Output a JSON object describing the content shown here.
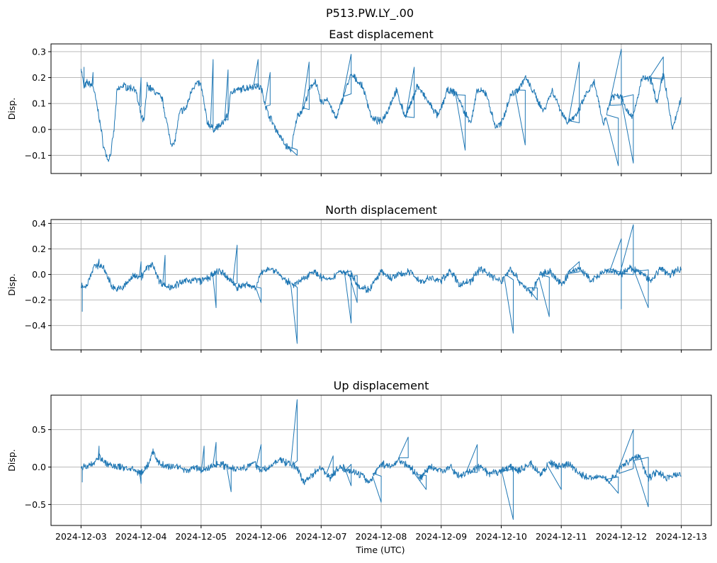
{
  "chart_data": {
    "type": "line",
    "title": "P513.PW.LY_.00",
    "xlabel": "Time (UTC)",
    "x_tick_labels": [
      "2024-12-03",
      "2024-12-04",
      "2024-12-05",
      "2024-12-06",
      "2024-12-07",
      "2024-12-08",
      "2024-12-09",
      "2024-12-10",
      "2024-12-11",
      "2024-12-12",
      "2024-12-13"
    ],
    "xlim": [
      "2024-12-02T12:30",
      "2024-12-13T12:30"
    ],
    "grid": true,
    "color": "#1f77b4",
    "panels": [
      {
        "title": "East displacement",
        "ylabel": "Disp.",
        "ylim": [
          -0.17,
          0.33
        ],
        "y_ticks": [
          -0.1,
          0.0,
          0.1,
          0.2,
          0.3
        ],
        "y_tick_labels": [
          "−0.1",
          "0.0",
          "0.1",
          "0.2",
          "0.3"
        ],
        "series": {
          "x_days_from_2024_12_03": [
            0,
            0.05,
            0.1,
            0.2,
            0.3,
            0.38,
            0.45,
            0.5,
            0.55,
            0.6,
            0.7,
            0.8,
            0.9,
            1.0,
            1.05,
            1.1,
            1.2,
            1.35,
            1.45,
            1.5,
            1.55,
            1.65,
            1.75,
            1.85,
            1.95,
            2.0,
            2.1,
            2.2,
            2.35,
            2.45,
            2.5,
            2.6,
            2.75,
            2.9,
            3.0,
            3.1,
            3.25,
            3.4,
            3.5,
            3.6,
            3.7,
            3.8,
            3.9,
            4.0,
            4.1,
            4.25,
            4.4,
            4.5,
            4.6,
            4.7,
            4.85,
            5.0,
            5.1,
            5.25,
            5.4,
            5.5,
            5.6,
            5.8,
            5.95,
            6.1,
            6.25,
            6.4,
            6.5,
            6.6,
            6.75,
            6.9,
            7.0,
            7.15,
            7.3,
            7.4,
            7.55,
            7.7,
            7.85,
            8.0,
            8.1,
            8.25,
            8.4,
            8.55,
            8.7,
            8.85,
            9.0,
            9.1,
            9.2,
            9.35,
            9.5,
            9.6,
            9.7,
            9.85,
            10.0
          ],
          "values": [
            0.24,
            0.16,
            0.18,
            0.17,
            0.05,
            -0.07,
            -0.12,
            -0.09,
            0.0,
            0.15,
            0.17,
            0.16,
            0.16,
            0.05,
            0.03,
            0.17,
            0.15,
            0.12,
            0.0,
            -0.05,
            -0.06,
            0.07,
            0.08,
            0.16,
            0.18,
            0.17,
            0.03,
            0.0,
            0.02,
            0.06,
            0.15,
            0.15,
            0.16,
            0.17,
            0.16,
            0.07,
            0.0,
            -0.06,
            -0.08,
            0.05,
            0.08,
            0.15,
            0.19,
            0.1,
            0.12,
            0.04,
            0.15,
            0.21,
            0.19,
            0.16,
            0.04,
            0.03,
            0.07,
            0.15,
            0.05,
            0.1,
            0.17,
            0.1,
            0.05,
            0.15,
            0.14,
            0.06,
            0.03,
            0.15,
            0.14,
            0.01,
            0.02,
            0.13,
            0.16,
            0.2,
            0.14,
            0.07,
            0.15,
            0.07,
            0.03,
            0.05,
            0.13,
            0.18,
            0.02,
            0.13,
            0.13,
            0.07,
            0.05,
            0.2,
            0.19,
            0.1,
            0.22,
            0.0,
            0.12
          ]
        },
        "spikes": [
          [
            0.05,
            0.24
          ],
          [
            0.2,
            0.22
          ],
          [
            1.0,
            0.2
          ],
          [
            2.2,
            0.27
          ],
          [
            2.45,
            0.23
          ],
          [
            2.95,
            0.27
          ],
          [
            3.15,
            0.22
          ],
          [
            3.6,
            -0.1
          ],
          [
            3.8,
            0.26
          ],
          [
            4.5,
            0.29
          ],
          [
            5.55,
            0.24
          ],
          [
            6.4,
            -0.08
          ],
          [
            7.4,
            -0.06
          ],
          [
            8.3,
            0.26
          ],
          [
            9.0,
            0.31
          ],
          [
            9.2,
            -0.13
          ],
          [
            8.95,
            -0.14
          ],
          [
            9.7,
            0.28
          ]
        ]
      },
      {
        "title": "North displacement",
        "ylabel": "Disp.",
        "ylim": [
          -0.59,
          0.43
        ],
        "y_ticks": [
          -0.4,
          -0.2,
          0.0,
          0.2,
          0.4
        ],
        "y_tick_labels": [
          "−0.4",
          "−0.2",
          "0.0",
          "0.2",
          "0.4"
        ],
        "series": {
          "x_days_from_2024_12_03": [
            0,
            0.05,
            0.1,
            0.2,
            0.3,
            0.4,
            0.5,
            0.6,
            0.7,
            0.8,
            0.9,
            1.0,
            1.1,
            1.2,
            1.3,
            1.45,
            1.6,
            1.75,
            1.9,
            2.0,
            2.15,
            2.3,
            2.5,
            2.6,
            2.75,
            2.9,
            3.0,
            3.1,
            3.25,
            3.4,
            3.55,
            3.7,
            3.85,
            4.0,
            4.15,
            4.3,
            4.5,
            4.65,
            4.8,
            5.0,
            5.15,
            5.3,
            5.5,
            5.65,
            5.8,
            6.0,
            6.15,
            6.3,
            6.5,
            6.65,
            6.8,
            7.0,
            7.15,
            7.3,
            7.5,
            7.65,
            7.8,
            8.0,
            8.15,
            8.3,
            8.5,
            8.65,
            8.8,
            9.0,
            9.15,
            9.3,
            9.5,
            9.65,
            9.8,
            10.0
          ],
          "values": [
            -0.08,
            -0.1,
            -0.08,
            0.05,
            0.08,
            0.03,
            -0.08,
            -0.12,
            -0.1,
            -0.05,
            0.0,
            -0.02,
            0.05,
            0.08,
            -0.05,
            -0.1,
            -0.08,
            -0.05,
            -0.04,
            -0.05,
            -0.02,
            0.03,
            -0.05,
            -0.1,
            -0.08,
            -0.1,
            0.0,
            0.05,
            0.03,
            -0.05,
            -0.08,
            -0.04,
            0.03,
            -0.02,
            -0.05,
            0.03,
            0.0,
            -0.1,
            -0.12,
            0.02,
            -0.03,
            0.0,
            0.02,
            -0.06,
            -0.03,
            -0.05,
            0.03,
            -0.08,
            -0.05,
            0.05,
            0.0,
            -0.06,
            0.05,
            -0.05,
            -0.15,
            0.0,
            0.03,
            -0.08,
            0.02,
            0.05,
            -0.05,
            0.0,
            0.03,
            0.0,
            0.05,
            0.02,
            -0.05,
            0.05,
            0.0,
            0.05
          ]
        },
        "spikes": [
          [
            0.02,
            -0.29
          ],
          [
            0.3,
            0.12
          ],
          [
            1.0,
            0.1
          ],
          [
            1.4,
            0.15
          ],
          [
            2.25,
            -0.26
          ],
          [
            2.6,
            0.23
          ],
          [
            3.0,
            -0.22
          ],
          [
            3.6,
            -0.54
          ],
          [
            4.5,
            -0.38
          ],
          [
            4.6,
            -0.22
          ],
          [
            7.2,
            -0.46
          ],
          [
            7.6,
            -0.2
          ],
          [
            7.8,
            -0.33
          ],
          [
            8.3,
            0.1
          ],
          [
            9.0,
            -0.27
          ],
          [
            9.0,
            0.28
          ],
          [
            9.2,
            0.39
          ],
          [
            9.45,
            -0.26
          ]
        ]
      },
      {
        "title": "Up displacement",
        "ylabel": "Disp.",
        "ylim": [
          -0.78,
          0.96
        ],
        "y_ticks": [
          -0.5,
          0.0,
          0.5
        ],
        "y_tick_labels": [
          "−0.5",
          "0.0",
          "0.5"
        ],
        "series": {
          "x_days_from_2024_12_03": [
            0,
            0.1,
            0.2,
            0.3,
            0.4,
            0.5,
            0.6,
            0.7,
            0.8,
            0.9,
            1.0,
            1.1,
            1.2,
            1.3,
            1.45,
            1.6,
            1.75,
            1.9,
            2.0,
            2.15,
            2.3,
            2.45,
            2.6,
            2.75,
            2.9,
            3.0,
            3.15,
            3.3,
            3.45,
            3.6,
            3.7,
            3.85,
            4.0,
            4.15,
            4.3,
            4.5,
            4.65,
            4.8,
            5.0,
            5.15,
            5.3,
            5.5,
            5.65,
            5.8,
            6.0,
            6.15,
            6.3,
            6.5,
            6.65,
            6.8,
            7.0,
            7.15,
            7.3,
            7.5,
            7.65,
            7.8,
            8.0,
            8.15,
            8.3,
            8.5,
            8.65,
            8.8,
            9.0,
            9.15,
            9.3,
            9.45,
            9.6,
            9.75,
            9.9,
            10.0
          ],
          "values": [
            0.0,
            0.0,
            0.05,
            0.15,
            0.05,
            0.02,
            0.0,
            0.0,
            -0.02,
            -0.05,
            -0.08,
            0.0,
            0.2,
            0.05,
            0.0,
            0.02,
            -0.05,
            0.0,
            -0.05,
            0.0,
            0.05,
            0.0,
            -0.02,
            0.0,
            0.05,
            -0.05,
            0.0,
            0.1,
            0.05,
            0.0,
            -0.2,
            -0.1,
            0.0,
            -0.15,
            0.0,
            -0.05,
            -0.1,
            -0.2,
            0.05,
            0.0,
            0.1,
            -0.02,
            -0.15,
            0.0,
            -0.05,
            0.0,
            -0.12,
            -0.05,
            0.0,
            -0.1,
            -0.05,
            0.0,
            -0.05,
            0.05,
            -0.1,
            0.05,
            0.0,
            0.05,
            -0.1,
            -0.15,
            -0.1,
            -0.2,
            0.0,
            0.1,
            0.15,
            -0.15,
            -0.05,
            -0.15,
            -0.1,
            -0.1
          ]
        },
        "spikes": [
          [
            0.02,
            -0.2
          ],
          [
            0.3,
            0.28
          ],
          [
            1.0,
            -0.22
          ],
          [
            2.05,
            0.28
          ],
          [
            2.25,
            0.33
          ],
          [
            2.5,
            -0.33
          ],
          [
            3.0,
            0.3
          ],
          [
            3.6,
            0.9
          ],
          [
            4.2,
            0.15
          ],
          [
            4.5,
            -0.25
          ],
          [
            5.0,
            -0.47
          ],
          [
            5.45,
            0.4
          ],
          [
            5.75,
            -0.3
          ],
          [
            6.6,
            0.3
          ],
          [
            7.2,
            -0.7
          ],
          [
            8.0,
            -0.3
          ],
          [
            8.95,
            -0.35
          ],
          [
            9.2,
            0.5
          ],
          [
            9.45,
            -0.53
          ]
        ]
      }
    ]
  }
}
